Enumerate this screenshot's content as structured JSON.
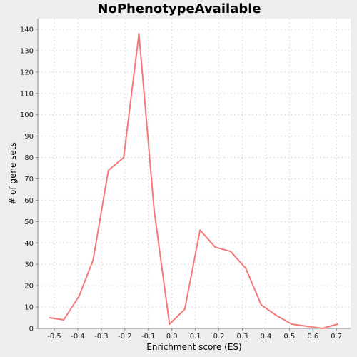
{
  "chart_data": {
    "type": "line",
    "title": "NoPhenotypeAvailable",
    "xlabel": "Enrichment score (ES)",
    "ylabel": "# of gene sets",
    "xlim": [
      -0.57,
      0.76
    ],
    "ylim": [
      0,
      145
    ],
    "x_ticks": [
      -0.5,
      -0.4,
      -0.3,
      -0.2,
      -0.1,
      0.0,
      0.1,
      0.2,
      0.3,
      0.4,
      0.5,
      0.6,
      0.7
    ],
    "x_tick_labels": [
      "-0.5",
      "-0.4",
      "-0.3",
      "-0.2",
      "-0.1",
      "0.0",
      "0.1",
      "0.2",
      "0.3",
      "0.4",
      "0.5",
      "0.6",
      "0.7"
    ],
    "y_ticks": [
      0,
      10,
      20,
      30,
      40,
      50,
      60,
      70,
      80,
      90,
      100,
      110,
      120,
      130,
      140
    ],
    "grid": true,
    "series": [
      {
        "color": "#f47a7a",
        "x": [
          -0.52,
          -0.46,
          -0.395,
          -0.335,
          -0.27,
          -0.205,
          -0.14,
          -0.075,
          -0.01,
          0.055,
          0.12,
          0.185,
          0.25,
          0.315,
          0.38,
          0.445,
          0.51,
          0.575,
          0.64,
          0.705
        ],
        "y": [
          5,
          4,
          15,
          32,
          74,
          80,
          138,
          55,
          2,
          9,
          46,
          38,
          36,
          28,
          11,
          6,
          2,
          1,
          0,
          2
        ]
      }
    ]
  }
}
